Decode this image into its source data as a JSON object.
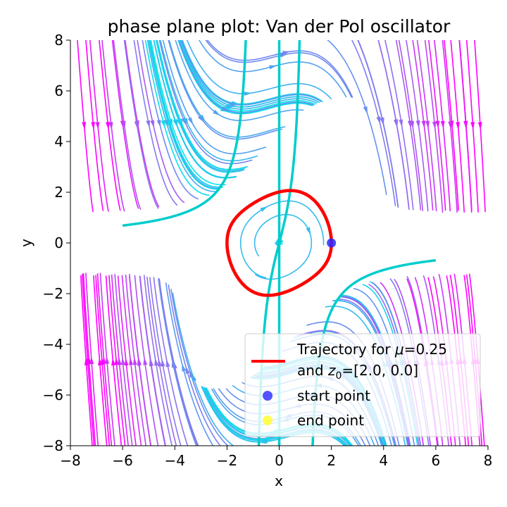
{
  "chart_data": {
    "type": "streamplot",
    "title": "phase plane plot: Van der Pol oscillator",
    "xlabel": "x",
    "ylabel": "y",
    "xlim": [
      -8,
      8
    ],
    "ylim": [
      -8,
      8
    ],
    "xticks": [
      -8,
      -6,
      -4,
      -2,
      0,
      2,
      4,
      6,
      8
    ],
    "yticks": [
      -8,
      -6,
      -4,
      -2,
      0,
      2,
      4,
      6,
      8
    ],
    "xtick_labels": [
      "−8",
      "−6",
      "−4",
      "−2",
      "0",
      "2",
      "4",
      "6",
      "8"
    ],
    "ytick_labels": [
      "−8",
      "−6",
      "−4",
      "−2",
      "0",
      "2",
      "4",
      "6",
      "8"
    ],
    "mu": 0.25,
    "z0": [
      2.0,
      0.0
    ],
    "vector_field": "dx/dt = y, dy/dt = mu*(1 - x^2)*y - x",
    "colormap_stops": [
      "#00e8e8",
      "#4aa8f0",
      "#9a6af0",
      "#ff00ff"
    ],
    "trajectory_color": "#ff0000",
    "nullcline_color": "#00cccc",
    "start_point": {
      "x": 2.0,
      "y": 0.0,
      "color": "#2828ff"
    },
    "end_point": {
      "color": "#ffff28"
    },
    "grid": false,
    "legend": {
      "position": "lower-right",
      "entries": [
        {
          "line1": "Trajectory for ",
          "mu_sym": "μ",
          "line1b": "=0.25",
          "line2a": "and ",
          "z_sym": "z",
          "z_sub": "0",
          "line2b": "=[2.0, 0.0]",
          "kind": "line",
          "color": "#ff0000"
        },
        {
          "label": "start point",
          "kind": "marker",
          "color": "#2828ff"
        },
        {
          "label": "end point",
          "kind": "marker",
          "color": "#ffff28"
        }
      ]
    }
  }
}
